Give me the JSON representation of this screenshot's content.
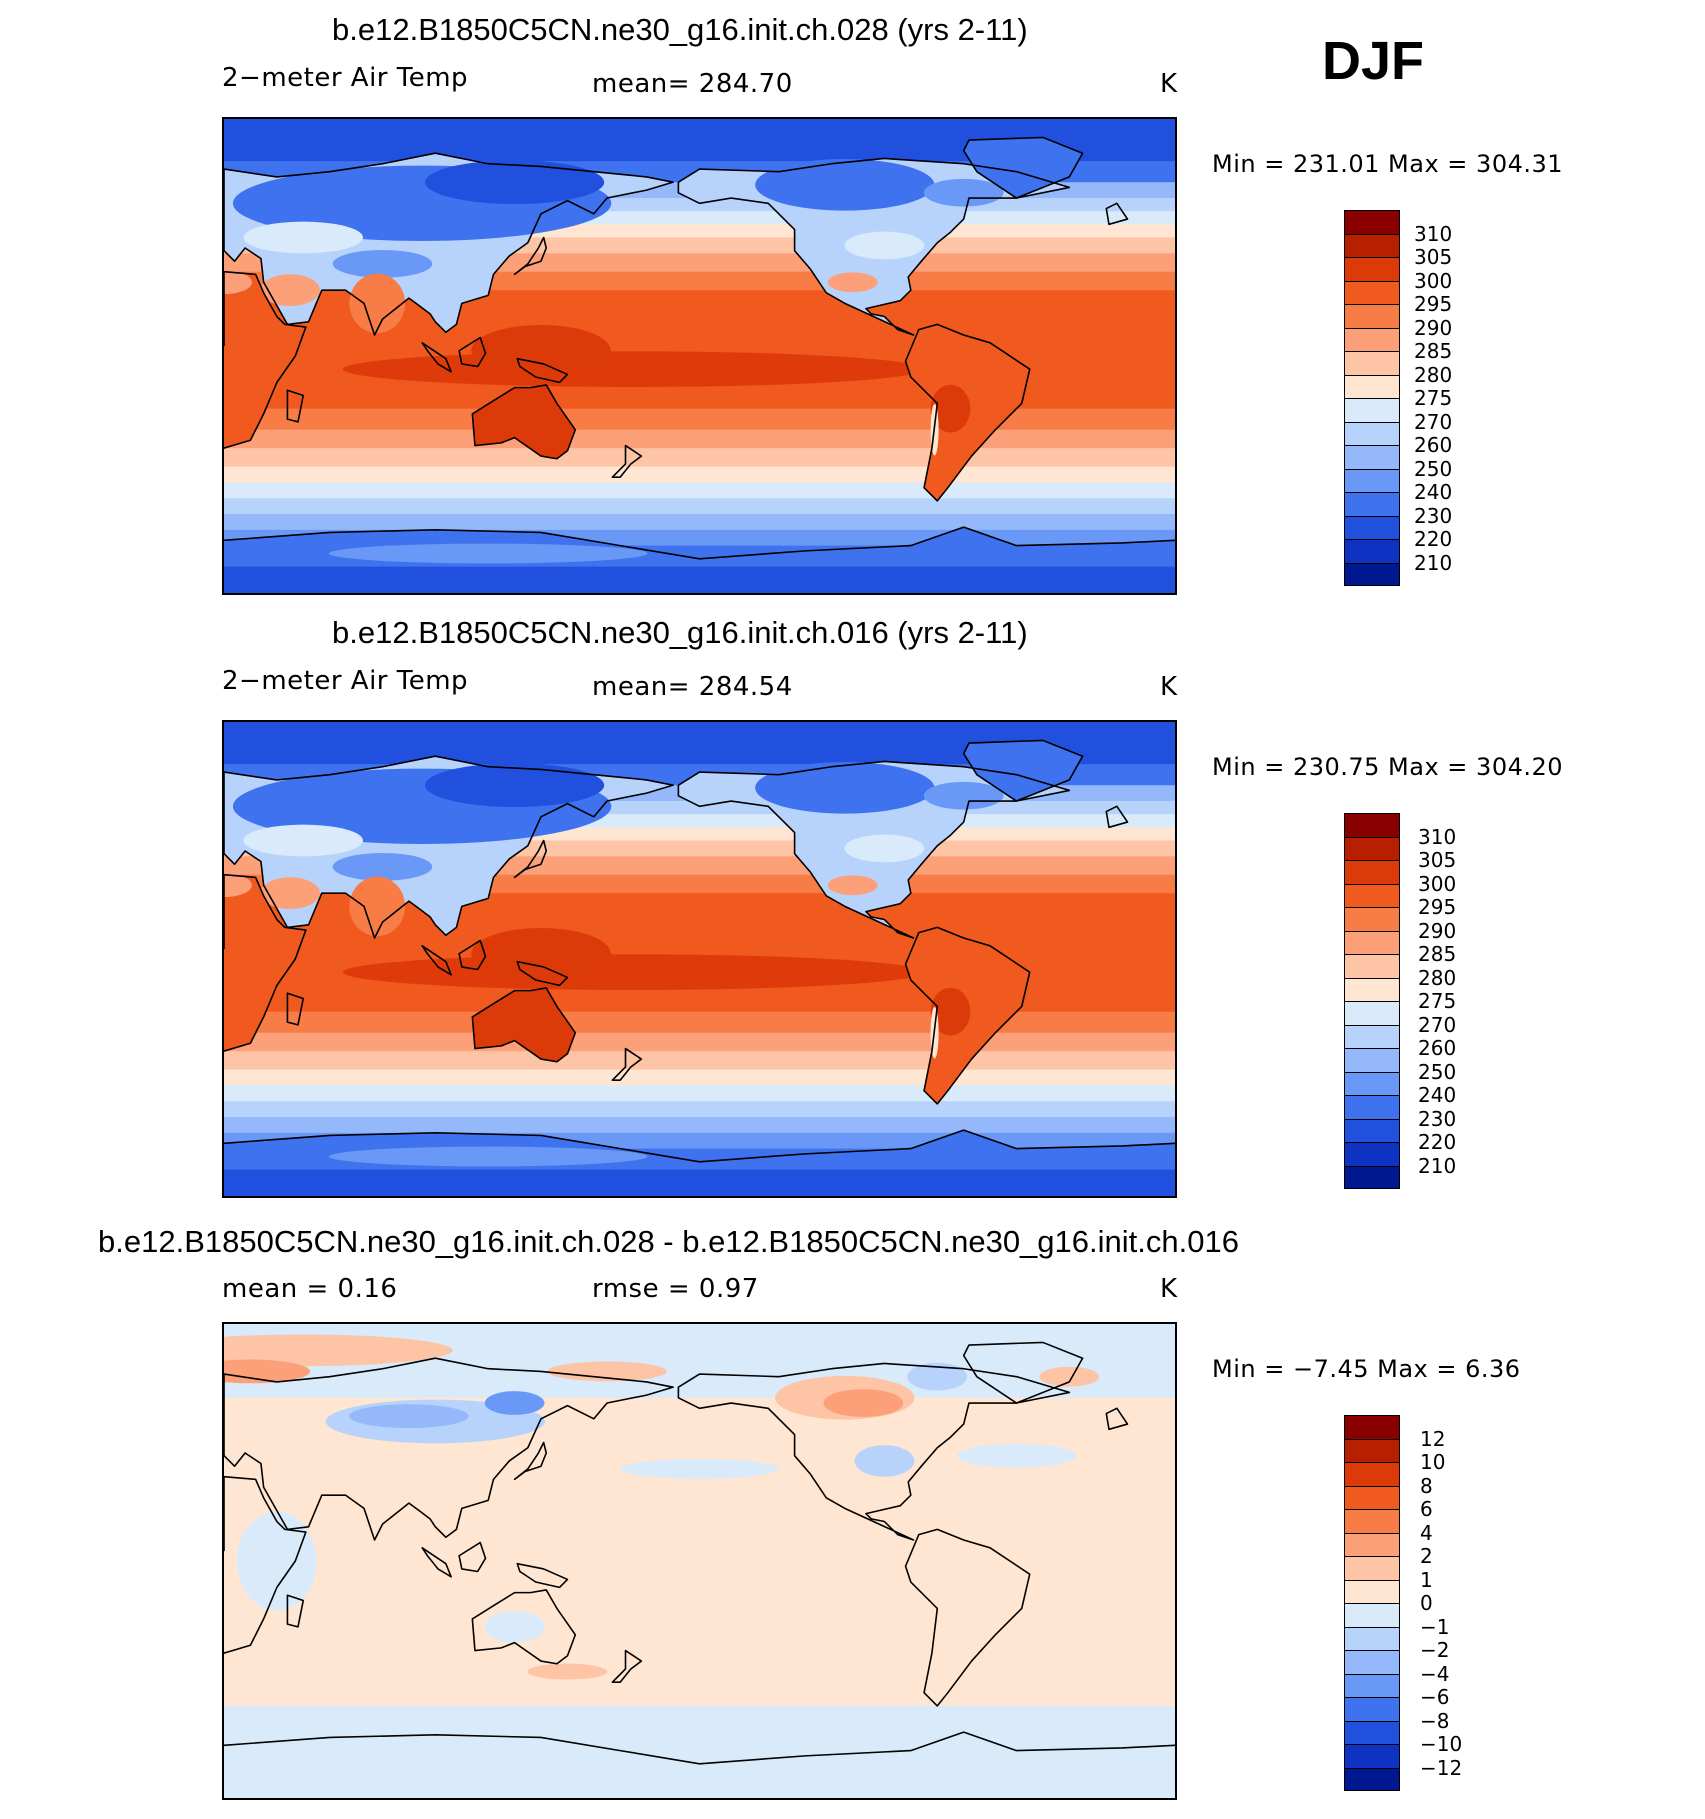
{
  "season": "DJF",
  "panels": [
    {
      "title": "b.e12.B1850C5CN.ne30_g16.init.ch.028 (yrs 2-11)",
      "left_label": "2−meter Air Temp",
      "center_label": "mean=  284.70",
      "unit": "K",
      "minmax": "Min  =  231.01  Max  =  304.31",
      "type": "field",
      "variant": 0
    },
    {
      "title": "b.e12.B1850C5CN.ne30_g16.init.ch.016 (yrs 2-11)",
      "left_label": "2−meter Air Temp",
      "center_label": "mean=  284.54",
      "unit": "K",
      "minmax": "Min  =  230.75  Max  =  304.20",
      "type": "field",
      "variant": 1
    },
    {
      "title": "b.e12.B1850C5CN.ne30_g16.init.ch.028 - b.e12.B1850C5CN.ne30_g16.init.ch.016",
      "left_label": "mean =     0.16",
      "center_label": "rmse =     0.97",
      "unit": "K",
      "minmax": "Min  =    −7.45  Max  =     6.36",
      "type": "diff",
      "variant": 2
    }
  ],
  "colorbars": {
    "field": {
      "labels": [
        "310",
        "305",
        "300",
        "295",
        "290",
        "285",
        "280",
        "275",
        "270",
        "260",
        "250",
        "240",
        "230",
        "220",
        "210"
      ],
      "colors": [
        "#8a0000",
        "#b81e00",
        "#dd3a0a",
        "#f05a1e",
        "#f87c46",
        "#fca07a",
        "#fdc4a6",
        "#fee6d2",
        "#d9eafb",
        "#b8d3fb",
        "#94b8fa",
        "#6a98f6",
        "#3f72ee",
        "#2150de",
        "#0e33c2",
        "#001890"
      ]
    },
    "diff": {
      "labels": [
        "12",
        "10",
        "8",
        "6",
        "4",
        "2",
        "1",
        "0",
        "−1",
        "−2",
        "−4",
        "−6",
        "−8",
        "−10",
        "−12"
      ],
      "colors": [
        "#8a0000",
        "#b81e00",
        "#dd3a0a",
        "#f05a1e",
        "#f87c46",
        "#fca07a",
        "#fdc4a6",
        "#fee6d2",
        "#d9eafb",
        "#b8d3fb",
        "#94b8fa",
        "#6a98f6",
        "#3f72ee",
        "#2150de",
        "#0e33c2",
        "#001890"
      ]
    }
  }
}
